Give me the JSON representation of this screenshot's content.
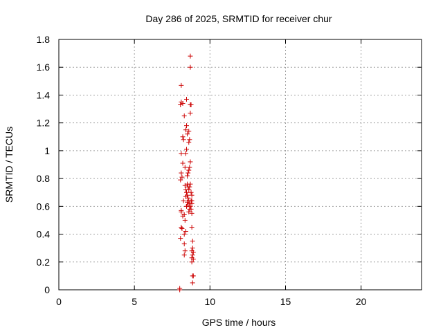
{
  "chart_data": {
    "type": "scatter",
    "title": "Day 286 of 2025, SRMTID for receiver chur",
    "xlabel": "GPS time / hours",
    "ylabel": "SRMTID / TECUs",
    "xlim": [
      0,
      24
    ],
    "ylim": [
      0,
      1.8
    ],
    "x_ticks": [
      0,
      5,
      10,
      15,
      20
    ],
    "x_tick_labels": [
      "0",
      "5",
      "10",
      "15",
      "20"
    ],
    "y_ticks": [
      0,
      0.2,
      0.4,
      0.6,
      0.8,
      1,
      1.2,
      1.4,
      1.6,
      1.8
    ],
    "y_tick_labels": [
      "0",
      "0.2",
      "0.4",
      "0.6",
      "0.8",
      "1",
      "1.2",
      "1.4",
      "1.6",
      "1.8"
    ],
    "grid": true,
    "marker": "+",
    "marker_color": "#cc0000",
    "series": [
      {
        "name": "SRMTID",
        "points": [
          [
            8.0,
            0.01
          ],
          [
            8.0,
            0.0
          ],
          [
            8.05,
            0.37
          ],
          [
            8.1,
            0.45
          ],
          [
            8.15,
            0.44
          ],
          [
            8.1,
            0.56
          ],
          [
            8.1,
            0.57
          ],
          [
            8.2,
            0.53
          ],
          [
            8.25,
            0.64
          ],
          [
            8.05,
            0.79
          ],
          [
            8.1,
            0.84
          ],
          [
            8.15,
            0.81
          ],
          [
            8.2,
            0.91
          ],
          [
            8.1,
            0.98
          ],
          [
            8.25,
            1.08
          ],
          [
            8.2,
            1.1
          ],
          [
            8.05,
            1.33
          ],
          [
            8.1,
            1.35
          ],
          [
            8.2,
            1.34
          ],
          [
            8.1,
            1.47
          ],
          [
            8.3,
            1.25
          ],
          [
            8.45,
            1.37
          ],
          [
            8.4,
            1.15
          ],
          [
            8.45,
            1.18
          ],
          [
            8.5,
            1.12
          ],
          [
            8.45,
            1.01
          ],
          [
            8.4,
            0.98
          ],
          [
            8.35,
            0.88
          ],
          [
            8.5,
            0.82
          ],
          [
            8.55,
            0.84
          ],
          [
            8.6,
            0.86
          ],
          [
            8.65,
            0.88
          ],
          [
            8.7,
            0.92
          ],
          [
            8.6,
            1.06
          ],
          [
            8.65,
            1.08
          ],
          [
            8.7,
            1.27
          ],
          [
            8.75,
            1.33
          ],
          [
            8.7,
            1.33
          ],
          [
            8.7,
            1.6
          ],
          [
            8.7,
            1.68
          ],
          [
            8.6,
            1.14
          ],
          [
            8.35,
            0.75
          ],
          [
            8.4,
            0.72
          ],
          [
            8.45,
            0.7
          ],
          [
            8.5,
            0.68
          ],
          [
            8.55,
            0.66
          ],
          [
            8.6,
            0.64
          ],
          [
            8.65,
            0.62
          ],
          [
            8.7,
            0.6
          ],
          [
            8.75,
            0.58
          ],
          [
            8.4,
            0.67
          ],
          [
            8.5,
            0.63
          ],
          [
            8.55,
            0.61
          ],
          [
            8.45,
            0.6
          ],
          [
            8.6,
            0.72
          ],
          [
            8.65,
            0.74
          ],
          [
            8.7,
            0.76
          ],
          [
            8.75,
            0.7
          ],
          [
            8.8,
            0.68
          ],
          [
            8.8,
            0.64
          ],
          [
            8.5,
            0.76
          ],
          [
            8.55,
            0.74
          ],
          [
            8.3,
            0.54
          ],
          [
            8.35,
            0.5
          ],
          [
            8.4,
            0.42
          ],
          [
            8.3,
            0.4
          ],
          [
            8.3,
            0.33
          ],
          [
            8.35,
            0.28
          ],
          [
            8.3,
            0.25
          ],
          [
            8.8,
            0.45
          ],
          [
            8.8,
            0.55
          ],
          [
            8.8,
            0.62
          ],
          [
            8.75,
            0.64
          ],
          [
            8.85,
            0.35
          ],
          [
            8.85,
            0.3
          ],
          [
            8.8,
            0.28
          ],
          [
            8.9,
            0.27
          ],
          [
            8.85,
            0.25
          ],
          [
            8.8,
            0.23
          ],
          [
            8.9,
            0.22
          ],
          [
            8.8,
            0.2
          ],
          [
            8.85,
            0.1
          ],
          [
            8.9,
            0.1
          ],
          [
            8.85,
            0.05
          ],
          [
            8.6,
            0.56
          ],
          [
            8.65,
            0.58
          ]
        ]
      }
    ]
  }
}
